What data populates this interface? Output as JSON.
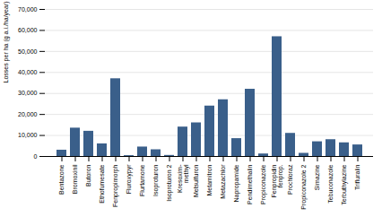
{
  "chart_data": {
    "type": "bar",
    "categories": [
      "Bentazone",
      "Bromoxinil",
      "Butoron",
      "Ethofumesate",
      "Fenpropimorph",
      "Fluroxypyr",
      "Flurtamone",
      "Isoproturon",
      "Isoproturon 2",
      "Kresoxim-\nmethyl",
      "Metsulfuron",
      "Metamitron",
      "Metazachlor",
      "Napropamide",
      "Pendimethalin",
      "Propiconazole",
      "Fenpropidin\nfenprop.",
      "Prochloraz",
      "Propiconazole 2",
      "Simazine",
      "Tebuconazole",
      "Terbuthylazine",
      "Trifluralin"
    ],
    "values": [
      3000,
      13500,
      12000,
      6000,
      37000,
      400,
      4500,
      3200,
      500,
      14000,
      16000,
      24000,
      27000,
      8500,
      32000,
      1200,
      57000,
      11000,
      1500,
      7000,
      8000,
      6500,
      5500
    ],
    "color": "#3a5f8a",
    "ylabel": "Losses per ha (g a.i./ha/year)",
    "ylim": [
      0,
      70000
    ],
    "yticks": [
      0,
      {
        "value": 10000,
        "label": "10,000"
      },
      {
        "value": 20000,
        "label": "20,000"
      },
      {
        "value": 30000,
        "label": "30,000"
      },
      {
        "value": 40000,
        "label": "40,000"
      },
      {
        "value": 50000,
        "label": "50,000"
      },
      {
        "value": 60000,
        "label": "60,000"
      },
      {
        "value": 70000,
        "label": "70,000"
      }
    ],
    "grid": true
  }
}
